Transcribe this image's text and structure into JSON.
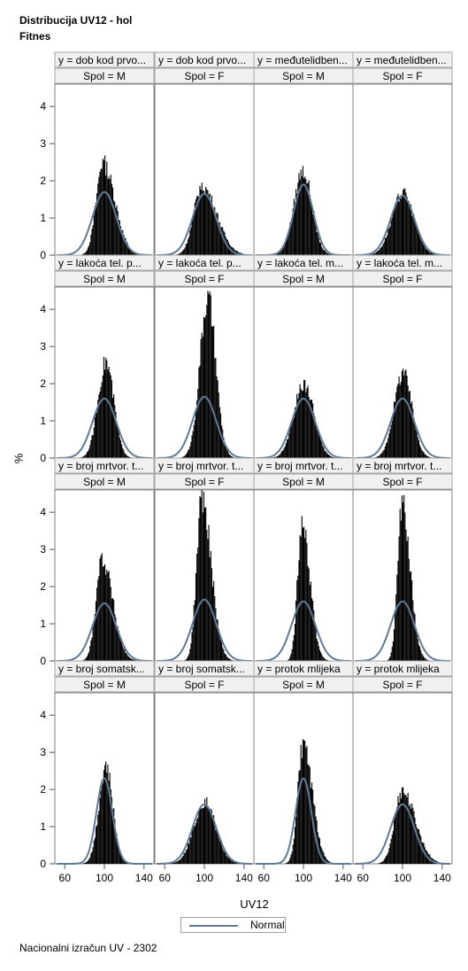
{
  "title": "Distribucija UV12 - hol",
  "subtitle": "Fitnes",
  "footnote": "Nacionalni izračun UV - 2302",
  "legend": {
    "label": "Normal",
    "color": "#5f7a94"
  },
  "colors": {
    "bars": "#000000",
    "curve": "#5f7a94",
    "header_bg": "#f0f0f0",
    "frame": "#808080"
  },
  "chart_data": {
    "type": "bar",
    "xlabel": "UV12",
    "ylabel": "%",
    "xlim": [
      50,
      150
    ],
    "ylim": [
      0,
      4.6
    ],
    "x_ticks": [
      60,
      100,
      140
    ],
    "y_ticks": [
      0,
      1,
      2,
      3,
      4
    ],
    "column_headers": [
      "Spol = M",
      "Spol = F",
      "Spol = M",
      "Spol = F"
    ],
    "rows": [
      [
        "y = dob kod prvo...",
        "y = dob kod prvo...",
        "y = međutelidben...",
        "y = međutelidben..."
      ],
      [
        "y = lakoća tel. p...",
        "y = lakoća tel. p...",
        "y = lakoća tel. m...",
        "y = lakoća tel. m..."
      ],
      [
        "y = broj mrtvor. t...",
        "y = broj mrtvor. t...",
        "y = broj mrtvor. t...",
        "y = broj mrtvor. t..."
      ],
      [
        "y = broj somatsk...",
        "y = broj somatsk...",
        "y = protok mlijeka",
        "y = protok mlijeka"
      ]
    ],
    "panels": [
      {
        "row": 0,
        "col": 0,
        "hist_peak_x": 98,
        "hist_peak": 2.6,
        "hist_sd": 9,
        "skew": true,
        "normal_peak": 1.7,
        "normal_mean": 100,
        "normal_sd": 12
      },
      {
        "row": 0,
        "col": 1,
        "hist_peak_x": 97,
        "hist_peak": 1.95,
        "hist_sd": 11,
        "skew": true,
        "normal_peak": 1.65,
        "normal_mean": 100,
        "normal_sd": 12
      },
      {
        "row": 0,
        "col": 2,
        "hist_peak_x": 99,
        "hist_peak": 2.4,
        "hist_sd": 9,
        "skew": false,
        "normal_peak": 1.9,
        "normal_mean": 100,
        "normal_sd": 10
      },
      {
        "row": 0,
        "col": 3,
        "hist_peak_x": 100,
        "hist_peak": 1.75,
        "hist_sd": 11,
        "skew": false,
        "normal_peak": 1.6,
        "normal_mean": 100,
        "normal_sd": 12
      },
      {
        "row": 1,
        "col": 0,
        "hist_peak_x": 101,
        "hist_peak": 2.7,
        "hist_sd": 8,
        "skew": false,
        "normal_peak": 1.6,
        "normal_mean": 100,
        "normal_sd": 12
      },
      {
        "row": 1,
        "col": 1,
        "hist_peak_x": 103,
        "hist_peak": 4.5,
        "hist_sd": 8,
        "skew": false,
        "normal_peak": 1.65,
        "normal_mean": 100,
        "normal_sd": 12
      },
      {
        "row": 1,
        "col": 2,
        "hist_peak_x": 100,
        "hist_peak": 2.1,
        "hist_sd": 10,
        "skew": false,
        "normal_peak": 1.6,
        "normal_mean": 100,
        "normal_sd": 12
      },
      {
        "row": 1,
        "col": 3,
        "hist_peak_x": 100,
        "hist_peak": 2.4,
        "hist_sd": 9,
        "skew": false,
        "normal_peak": 1.6,
        "normal_mean": 100,
        "normal_sd": 12
      },
      {
        "row": 2,
        "col": 0,
        "hist_peak_x": 97,
        "hist_peak": 2.9,
        "hist_sd": 8,
        "skew": true,
        "normal_peak": 1.55,
        "normal_mean": 100,
        "normal_sd": 12
      },
      {
        "row": 2,
        "col": 1,
        "hist_peak_x": 97,
        "hist_peak": 4.6,
        "hist_sd": 7,
        "skew": true,
        "normal_peak": 1.65,
        "normal_mean": 100,
        "normal_sd": 12
      },
      {
        "row": 2,
        "col": 2,
        "hist_peak_x": 98,
        "hist_peak": 3.9,
        "hist_sd": 6,
        "skew": true,
        "normal_peak": 1.6,
        "normal_mean": 100,
        "normal_sd": 12
      },
      {
        "row": 2,
        "col": 3,
        "hist_peak_x": 99,
        "hist_peak": 4.45,
        "hist_sd": 6,
        "skew": true,
        "normal_peak": 1.6,
        "normal_mean": 100,
        "normal_sd": 12
      },
      {
        "row": 3,
        "col": 0,
        "hist_peak_x": 101,
        "hist_peak": 2.75,
        "hist_sd": 7,
        "skew": false,
        "normal_peak": 2.3,
        "normal_mean": 100,
        "normal_sd": 8
      },
      {
        "row": 3,
        "col": 1,
        "hist_peak_x": 100,
        "hist_peak": 1.75,
        "hist_sd": 11,
        "skew": false,
        "normal_peak": 1.6,
        "normal_mean": 100,
        "normal_sd": 12
      },
      {
        "row": 3,
        "col": 2,
        "hist_peak_x": 99,
        "hist_peak": 3.35,
        "hist_sd": 7,
        "skew": true,
        "normal_peak": 2.3,
        "normal_mean": 100,
        "normal_sd": 8
      },
      {
        "row": 3,
        "col": 3,
        "hist_peak_x": 99,
        "hist_peak": 2.05,
        "hist_sd": 10,
        "skew": true,
        "normal_peak": 1.6,
        "normal_mean": 100,
        "normal_sd": 12
      }
    ]
  }
}
